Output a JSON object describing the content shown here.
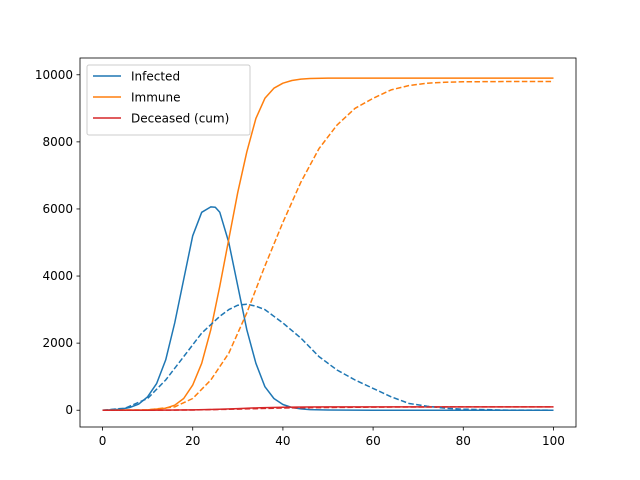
{
  "chart_data": {
    "type": "line",
    "title": "",
    "xlabel": "",
    "ylabel": "",
    "xlim": [
      -5,
      105
    ],
    "ylim": [
      -500,
      10500
    ],
    "x_ticks": [
      0,
      20,
      40,
      60,
      80,
      100
    ],
    "x_tick_labels": [
      "0",
      "20",
      "40",
      "60",
      "80",
      "100"
    ],
    "y_ticks": [
      0,
      2000,
      4000,
      6000,
      8000,
      10000
    ],
    "y_tick_labels": [
      "0",
      "2000",
      "4000",
      "6000",
      "8000",
      "10000"
    ],
    "grid": false,
    "legend_position": "upper-left",
    "legend": [
      {
        "label": "Infected",
        "color": "#1f77b4"
      },
      {
        "label": "Immune",
        "color": "#ff7f0e"
      },
      {
        "label": "Deceased (cum)",
        "color": "#d62728"
      }
    ],
    "series": [
      {
        "name": "Infected",
        "color": "#1f77b4",
        "style": "solid",
        "x": [
          0,
          4,
          6,
          8,
          10,
          12,
          14,
          16,
          18,
          20,
          22,
          24,
          25,
          26,
          28,
          30,
          32,
          34,
          36,
          38,
          40,
          42,
          44,
          46,
          50,
          60,
          70,
          80,
          90,
          100
        ],
        "y": [
          0,
          30,
          80,
          180,
          400,
          800,
          1500,
          2600,
          3900,
          5200,
          5900,
          6060,
          6050,
          5900,
          5000,
          3700,
          2400,
          1400,
          700,
          350,
          170,
          80,
          40,
          20,
          8,
          2,
          0,
          0,
          0,
          0
        ]
      },
      {
        "name": "Immune",
        "color": "#ff7f0e",
        "style": "solid",
        "x": [
          0,
          10,
          14,
          16,
          18,
          20,
          22,
          24,
          26,
          28,
          30,
          32,
          34,
          36,
          38,
          40,
          42,
          44,
          46,
          50,
          60,
          80,
          100
        ],
        "y": [
          0,
          10,
          60,
          150,
          350,
          750,
          1400,
          2400,
          3700,
          5100,
          6500,
          7700,
          8700,
          9300,
          9600,
          9750,
          9830,
          9870,
          9890,
          9900,
          9900,
          9900,
          9900
        ]
      },
      {
        "name": "Deceased (cum)",
        "color": "#d62728",
        "style": "solid",
        "x": [
          0,
          10,
          20,
          25,
          30,
          35,
          40,
          45,
          50,
          60,
          80,
          100
        ],
        "y": [
          0,
          1,
          10,
          25,
          50,
          75,
          90,
          97,
          99,
          100,
          100,
          100
        ]
      },
      {
        "name": "Infected",
        "color": "#1f77b4",
        "style": "dashed",
        "x": [
          0,
          5,
          10,
          14,
          18,
          22,
          26,
          28,
          30,
          32,
          34,
          36,
          40,
          44,
          48,
          52,
          56,
          60,
          64,
          68,
          72,
          76,
          80,
          90,
          100
        ],
        "y": [
          0,
          60,
          350,
          900,
          1600,
          2300,
          2800,
          3000,
          3130,
          3160,
          3100,
          3000,
          2600,
          2150,
          1600,
          1200,
          900,
          650,
          400,
          200,
          120,
          60,
          30,
          5,
          0
        ]
      },
      {
        "name": "Immune",
        "color": "#ff7f0e",
        "style": "dashed",
        "x": [
          0,
          10,
          16,
          20,
          24,
          28,
          32,
          36,
          40,
          44,
          48,
          52,
          56,
          60,
          64,
          68,
          72,
          76,
          80,
          90,
          100
        ],
        "y": [
          0,
          10,
          100,
          350,
          900,
          1700,
          2900,
          4300,
          5600,
          6800,
          7800,
          8500,
          9000,
          9300,
          9550,
          9680,
          9750,
          9780,
          9790,
          9800,
          9800
        ]
      },
      {
        "name": "Deceased (cum)",
        "color": "#d62728",
        "style": "dashed",
        "x": [
          0,
          10,
          20,
          30,
          40,
          50,
          60,
          70,
          80,
          90,
          100
        ],
        "y": [
          0,
          1,
          8,
          35,
          65,
          82,
          92,
          96,
          98,
          99,
          100
        ]
      }
    ]
  }
}
